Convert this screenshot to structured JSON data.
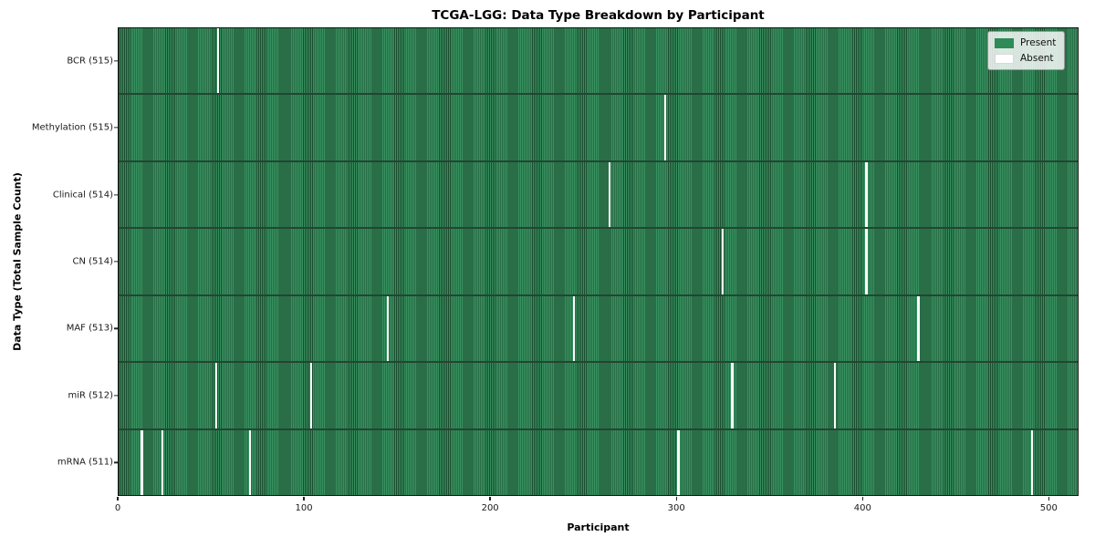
{
  "title": "TCGA-LGG: Data Type Breakdown by Participant",
  "colors": {
    "present": "#2e8b57",
    "present_bar_edge": "#1b4b2e",
    "absent": "#ffffff",
    "plot_frame": "#151515",
    "figure_background": "#ffffff"
  },
  "chart_data": {
    "type": "heatmap",
    "title": "TCGA-LGG: Data Type Breakdown by Participant",
    "xlabel": "Participant",
    "ylabel": "Data Type (Total Sample Count)",
    "xlim": [
      0,
      516
    ],
    "x_ticks": [
      0,
      100,
      200,
      300,
      400,
      500
    ],
    "n_participants": 516,
    "grid": false,
    "legend_position": "upper right",
    "legend": [
      {
        "label": "Present",
        "color": "#2e8b57"
      },
      {
        "label": "Absent",
        "color": "#ffffff"
      }
    ],
    "rows": [
      {
        "label": "BCR (515)",
        "data_type": "BCR",
        "present_count": 515,
        "absent_count": 1,
        "absent_at": [
          53
        ]
      },
      {
        "label": "Methylation (515)",
        "data_type": "Methylation",
        "present_count": 515,
        "absent_count": 1,
        "absent_at": [
          293
        ]
      },
      {
        "label": "Clinical (514)",
        "data_type": "Clinical",
        "present_count": 514,
        "absent_count": 2,
        "absent_at": [
          263,
          401
        ]
      },
      {
        "label": "CN (514)",
        "data_type": "CN",
        "present_count": 514,
        "absent_count": 2,
        "absent_at": [
          324,
          401
        ]
      },
      {
        "label": "MAF (513)",
        "data_type": "MAF",
        "present_count": 513,
        "absent_count": 3,
        "absent_at": [
          144,
          244,
          429
        ]
      },
      {
        "label": "miR (512)",
        "data_type": "miR",
        "present_count": 512,
        "absent_count": 4,
        "absent_at": [
          52,
          103,
          329,
          384
        ]
      },
      {
        "label": "mRNA (511)",
        "data_type": "mRNA",
        "present_count": 511,
        "absent_count": 5,
        "absent_at": [
          12,
          23,
          70,
          300,
          490
        ]
      }
    ]
  }
}
